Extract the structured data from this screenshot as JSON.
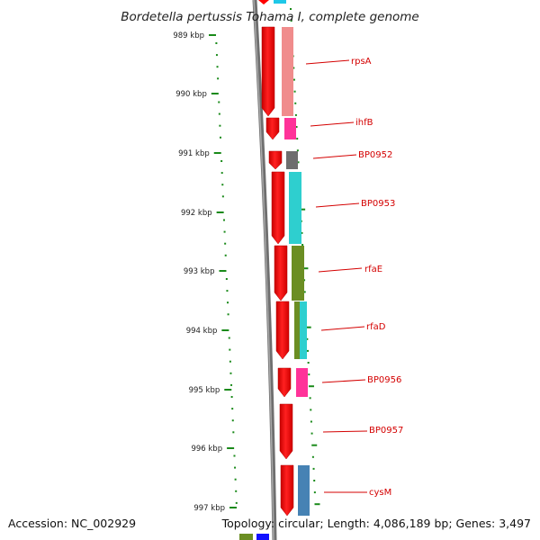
{
  "title": "Bordetella pertussis Tohama I, complete genome",
  "footer": {
    "accession": "Accession: NC_002929",
    "summary": "Topology: circular; Length: 4,086,189 bp; Genes: 3,497"
  },
  "scale_ticks": [
    "989 kbp",
    "990 kbp",
    "991 kbp",
    "992 kbp",
    "993 kbp",
    "994 kbp",
    "995 kbp",
    "996 kbp",
    "997 kbp"
  ],
  "genes": [
    {
      "name": "rpsA",
      "color": "#f08c8c"
    },
    {
      "name": "ihfB",
      "color": "#ff3399"
    },
    {
      "name": "BP0952",
      "color": "#6e6e6e"
    },
    {
      "name": "BP0953",
      "color": "#2ecfcf"
    },
    {
      "name": "rfaE",
      "color": "#6b8e23"
    },
    {
      "name": "rfaD",
      "color": "#2ecfcf"
    },
    {
      "name": "BP0956",
      "color": "#ff3399"
    },
    {
      "name": "BP0957",
      "color": ""
    },
    {
      "name": "cysM",
      "color": "#4682b4"
    }
  ],
  "colors": {
    "cds": "#ff0000",
    "tick": "#1a8a1a",
    "backbone": "#808080",
    "label": "#d40000"
  }
}
